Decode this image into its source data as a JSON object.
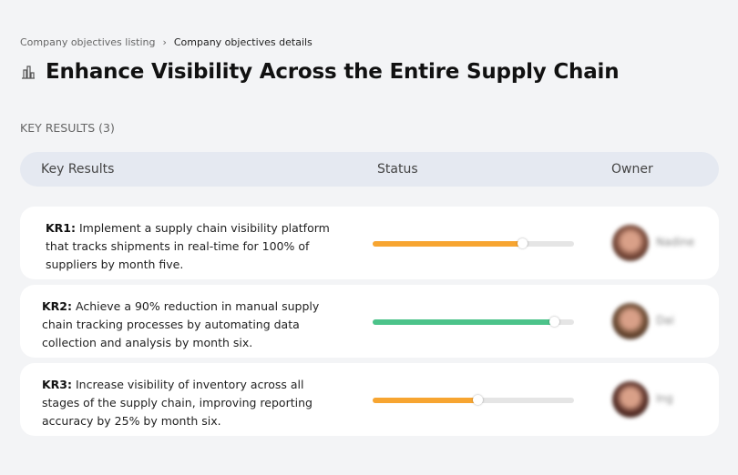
{
  "breadcrumb": {
    "items": [
      "Company objectives listing",
      "Company objectives details"
    ],
    "separator": "›"
  },
  "page": {
    "title": "Enhance Visibility Across the Entire Supply Chain",
    "icon": "building-chart-icon"
  },
  "section": {
    "label": "KEY RESULTS (3)"
  },
  "table": {
    "headers": [
      "Key Results",
      "Status",
      "Owner"
    ],
    "rows": [
      {
        "code": "KR1:",
        "text": "Implement a supply chain visibility platform that tracks shipments in real-time for 100% of suppliers by month five.",
        "progress": 74,
        "color": "#f7a531",
        "owner": "Nadine",
        "avatar": "#7a4a3a"
      },
      {
        "code": "KR2:",
        "text": "Achieve a 90% reduction in manual supply chain tracking processes by automating data collection and analysis by month six.",
        "progress": 90,
        "color": "#4cc38a",
        "owner": "Dai",
        "avatar": "#6b4a32"
      },
      {
        "code": "KR3:",
        "text": "Increase visibility of inventory across all stages of the supply chain, improving reporting accuracy by 25% by month six.",
        "progress": 52,
        "color": "#f7a531",
        "owner": "Ing",
        "avatar": "#5a3028"
      }
    ]
  }
}
